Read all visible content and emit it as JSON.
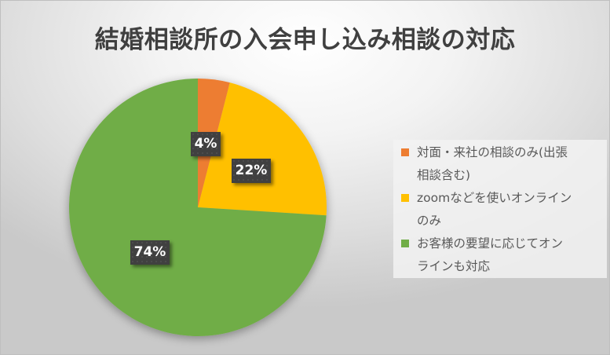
{
  "chart_data": {
    "type": "pie",
    "title": "結婚相談所の入会申し込み相談の対応",
    "categories": [
      "対面・来社の相談のみ(出張相談含む)",
      "zoomなどを使いオンラインのみ",
      "お客様の要望に応じてオンラインも対応"
    ],
    "values": [
      4,
      22,
      74
    ],
    "value_labels": [
      "4%",
      "22%",
      "74%"
    ],
    "colors": [
      "#ED7D31",
      "#FFC000",
      "#70AD47"
    ],
    "legend_position": "right",
    "start_angle": 0
  },
  "legend": {
    "items": [
      {
        "line1": "対面・来社の相談のみ(出張",
        "line2": "相談含む)"
      },
      {
        "line1": "zoomなどを使いオンライン",
        "line2": "のみ"
      },
      {
        "line1": "お客様の要望に応じてオン",
        "line2": "ラインも対応"
      }
    ]
  }
}
